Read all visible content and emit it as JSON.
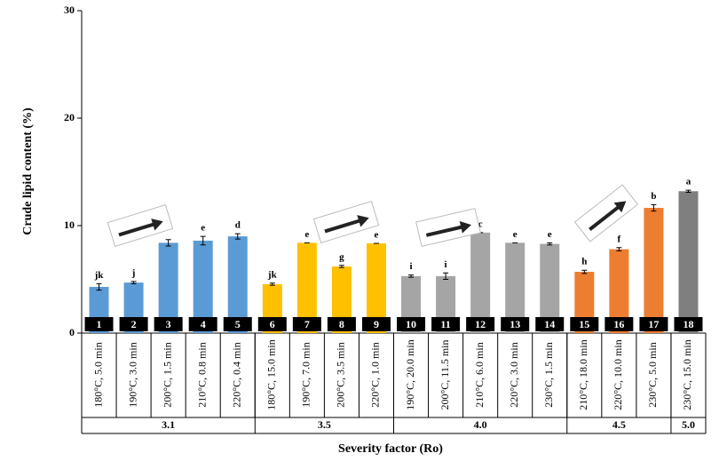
{
  "chart_data": {
    "type": "bar",
    "y_label": "Crude lipid content (%)",
    "x_label": "Severity factor (Ro)",
    "categories": [
      "180°C, 5.0 min",
      "190°C, 3.0 min",
      "200°C, 1.5 min",
      "210°C, 0.8 min",
      "220°C, 0.4 min",
      "180°C, 15.0 min",
      "190°C, 7.0 min",
      "200°C, 3.5 min",
      "220°C, 1.0 min",
      "190°C, 20.0 min",
      "200°C, 11.5 min",
      "210°C, 6.0 min",
      "220°C, 3.0 min",
      "230°C, 1.5 min",
      "210°C, 18.0 min",
      "220°C, 10.0 min",
      "230°C, 5.0 min",
      "230°C, 15.0 min"
    ],
    "numbers": [
      "1",
      "2",
      "3",
      "4",
      "5",
      "6",
      "7",
      "8",
      "9",
      "10",
      "11",
      "12",
      "13",
      "14",
      "15",
      "16",
      "17",
      "18"
    ],
    "values": [
      4.3,
      4.7,
      8.4,
      8.6,
      9.0,
      4.55,
      8.4,
      6.2,
      8.35,
      5.3,
      5.3,
      9.35,
      8.4,
      8.3,
      5.7,
      7.8,
      11.65,
      13.2
    ],
    "errors": [
      0.3,
      0.1,
      0.3,
      0.4,
      0.25,
      0.1,
      0,
      0.1,
      0,
      0.1,
      0.3,
      0,
      0,
      0.1,
      0.15,
      0.15,
      0.3,
      0.1
    ],
    "letters": [
      "jk",
      "j",
      null,
      "e",
      "d",
      "jk",
      "e",
      "g",
      "e",
      "i",
      "i",
      "c",
      "e",
      "e",
      "h",
      "f",
      "b",
      "a"
    ],
    "groups": [
      {
        "label": "3.1",
        "size": 5,
        "color": "#5b9bd5"
      },
      {
        "label": "3.5",
        "size": 4,
        "color": "#ffc000"
      },
      {
        "label": "4.0",
        "size": 5,
        "color": "#a5a5a5"
      },
      {
        "label": "4.5",
        "size": 3,
        "color": "#ed7d31"
      },
      {
        "label": "5.0",
        "size": 1,
        "color": "#7f7f7f"
      }
    ],
    "ylim": [
      0,
      30
    ],
    "yticks": [
      0,
      10,
      20,
      30
    ]
  }
}
